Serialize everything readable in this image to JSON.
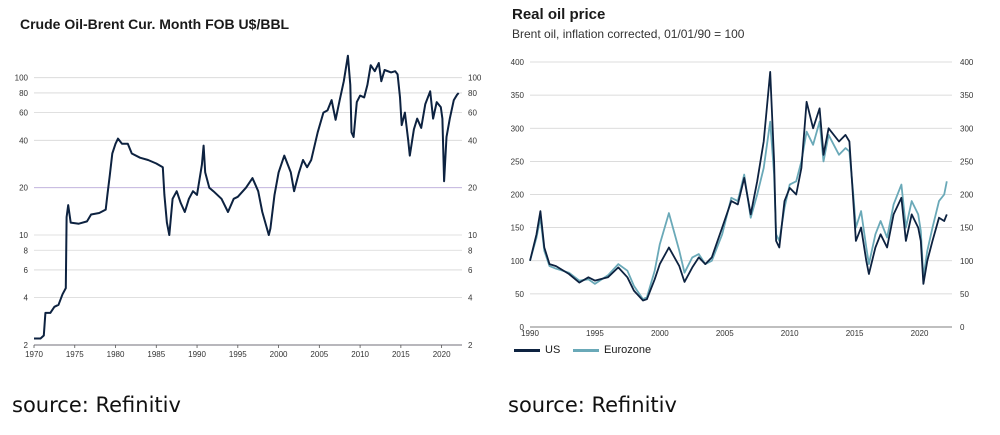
{
  "left_chart": {
    "title": "Crude Oil-Brent Cur. Month FOB U$/BBL",
    "source": "source: Refinitiv"
  },
  "right_chart": {
    "title": "Real oil price",
    "subtitle": "Brent oil, inflation corrected, 01/01/90 = 100",
    "source": "source: Refinitiv",
    "legend": [
      {
        "label": "US",
        "color": "#0d2240"
      },
      {
        "label": "Eurozone",
        "color": "#6aa9b8"
      }
    ]
  },
  "chart_data": [
    {
      "type": "line",
      "title": "Crude Oil-Brent Cur. Month FOB U$/BBL",
      "scale": "log",
      "ylim": [
        2,
        150
      ],
      "xlim": [
        1970,
        2022.5
      ],
      "x_ticks": [
        "1970",
        "1975",
        "1980",
        "1985",
        "1990",
        "1995",
        "2000",
        "2005",
        "2010",
        "2015",
        "2020"
      ],
      "y_ticks": [
        "2",
        "4",
        "6",
        "8",
        "10",
        "20",
        "40",
        "60",
        "80",
        "100"
      ],
      "grid": "horizontal",
      "line_color": "#0d2240",
      "series": [
        {
          "values": [
            [
              1970.0,
              2.2
            ],
            [
              1970.8,
              2.2
            ],
            [
              1971.2,
              2.3
            ],
            [
              1971.4,
              3.2
            ],
            [
              1972.0,
              3.2
            ],
            [
              1972.5,
              3.5
            ],
            [
              1973.0,
              3.6
            ],
            [
              1973.5,
              4.2
            ],
            [
              1973.9,
              4.6
            ],
            [
              1974.0,
              13.0
            ],
            [
              1974.2,
              15.5
            ],
            [
              1974.5,
              12.0
            ],
            [
              1975.5,
              11.8
            ],
            [
              1976.5,
              12.2
            ],
            [
              1977.0,
              13.5
            ],
            [
              1978.0,
              13.8
            ],
            [
              1978.8,
              14.5
            ],
            [
              1979.0,
              18.0
            ],
            [
              1979.3,
              24.0
            ],
            [
              1979.6,
              33.0
            ],
            [
              1980.0,
              38.0
            ],
            [
              1980.3,
              41.0
            ],
            [
              1980.8,
              38.0
            ],
            [
              1981.5,
              38.0
            ],
            [
              1982.0,
              33.0
            ],
            [
              1983.0,
              31.0
            ],
            [
              1984.0,
              30.0
            ],
            [
              1985.0,
              28.5
            ],
            [
              1985.8,
              27.0
            ],
            [
              1986.0,
              18.0
            ],
            [
              1986.3,
              12.0
            ],
            [
              1986.6,
              10.0
            ],
            [
              1987.0,
              17.0
            ],
            [
              1987.5,
              19.0
            ],
            [
              1988.0,
              16.0
            ],
            [
              1988.5,
              14.0
            ],
            [
              1989.0,
              17.0
            ],
            [
              1989.5,
              19.0
            ],
            [
              1990.0,
              18.0
            ],
            [
              1990.6,
              28.0
            ],
            [
              1990.8,
              37.0
            ],
            [
              1991.0,
              25.0
            ],
            [
              1991.5,
              20.0
            ],
            [
              1992.0,
              19.0
            ],
            [
              1993.0,
              17.0
            ],
            [
              1993.8,
              14.0
            ],
            [
              1994.5,
              17.0
            ],
            [
              1995.0,
              17.5
            ],
            [
              1996.0,
              20.0
            ],
            [
              1996.8,
              23.0
            ],
            [
              1997.5,
              19.0
            ],
            [
              1998.0,
              14.0
            ],
            [
              1998.8,
              10.0
            ],
            [
              1999.0,
              11.0
            ],
            [
              1999.5,
              18.0
            ],
            [
              2000.0,
              25.0
            ],
            [
              2000.7,
              32.0
            ],
            [
              2001.5,
              25.0
            ],
            [
              2001.9,
              19.0
            ],
            [
              2002.5,
              25.0
            ],
            [
              2003.0,
              30.0
            ],
            [
              2003.5,
              27.0
            ],
            [
              2004.0,
              30.0
            ],
            [
              2004.8,
              45.0
            ],
            [
              2005.5,
              60.0
            ],
            [
              2006.0,
              62.0
            ],
            [
              2006.5,
              72.0
            ],
            [
              2007.0,
              54.0
            ],
            [
              2007.5,
              72.0
            ],
            [
              2008.0,
              95.0
            ],
            [
              2008.5,
              138.0
            ],
            [
              2008.8,
              90.0
            ],
            [
              2008.95,
              45.0
            ],
            [
              2009.2,
              42.0
            ],
            [
              2009.6,
              70.0
            ],
            [
              2010.0,
              77.0
            ],
            [
              2010.5,
              75.0
            ],
            [
              2010.9,
              90.0
            ],
            [
              2011.3,
              120.0
            ],
            [
              2011.8,
              110.0
            ],
            [
              2012.3,
              124.0
            ],
            [
              2012.6,
              95.0
            ],
            [
              2013.0,
              112.0
            ],
            [
              2013.8,
              108.0
            ],
            [
              2014.3,
              110.0
            ],
            [
              2014.6,
              105.0
            ],
            [
              2014.9,
              75.0
            ],
            [
              2015.1,
              50.0
            ],
            [
              2015.5,
              60.0
            ],
            [
              2015.9,
              40.0
            ],
            [
              2016.1,
              32.0
            ],
            [
              2016.6,
              47.0
            ],
            [
              2017.0,
              55.0
            ],
            [
              2017.5,
              48.0
            ],
            [
              2018.0,
              68.0
            ],
            [
              2018.6,
              82.0
            ],
            [
              2018.95,
              55.0
            ],
            [
              2019.4,
              70.0
            ],
            [
              2019.9,
              65.0
            ],
            [
              2020.1,
              55.0
            ],
            [
              2020.3,
              22.0
            ],
            [
              2020.6,
              42.0
            ],
            [
              2021.0,
              55.0
            ],
            [
              2021.5,
              72.0
            ],
            [
              2021.9,
              78.0
            ],
            [
              2022.1,
              80.0
            ]
          ]
        }
      ]
    },
    {
      "type": "line",
      "title": "Real oil price",
      "subtitle": "Brent oil, inflation corrected, 01/01/90 = 100",
      "ylim": [
        0,
        400
      ],
      "xlim": [
        1990,
        2022.5
      ],
      "x_ticks": [
        "1990",
        "1995",
        "2000",
        "2005",
        "2010",
        "2015",
        "2020"
      ],
      "y_ticks": [
        "0",
        "50",
        "100",
        "150",
        "200",
        "250",
        "300",
        "350",
        "400"
      ],
      "grid": "horizontal",
      "legend_position": "bottom-left",
      "series": [
        {
          "name": "US",
          "color": "#0d2240",
          "values": [
            [
              1990.0,
              100
            ],
            [
              1990.5,
              140
            ],
            [
              1990.8,
              175
            ],
            [
              1991.1,
              120
            ],
            [
              1991.5,
              95
            ],
            [
              1992.0,
              92
            ],
            [
              1993.0,
              80
            ],
            [
              1993.8,
              67
            ],
            [
              1994.5,
              75
            ],
            [
              1995.0,
              70
            ],
            [
              1996.0,
              75
            ],
            [
              1996.8,
              90
            ],
            [
              1997.5,
              75
            ],
            [
              1998.0,
              55
            ],
            [
              1998.7,
              40
            ],
            [
              1999.0,
              42
            ],
            [
              1999.6,
              72
            ],
            [
              2000.0,
              95
            ],
            [
              2000.7,
              120
            ],
            [
              2001.5,
              92
            ],
            [
              2001.9,
              68
            ],
            [
              2002.5,
              90
            ],
            [
              2003.0,
              105
            ],
            [
              2003.5,
              95
            ],
            [
              2004.0,
              105
            ],
            [
              2004.8,
              150
            ],
            [
              2005.5,
              190
            ],
            [
              2006.0,
              185
            ],
            [
              2006.5,
              225
            ],
            [
              2007.0,
              170
            ],
            [
              2007.5,
              220
            ],
            [
              2008.0,
              280
            ],
            [
              2008.5,
              385
            ],
            [
              2008.8,
              250
            ],
            [
              2008.95,
              130
            ],
            [
              2009.2,
              120
            ],
            [
              2009.6,
              190
            ],
            [
              2010.0,
              210
            ],
            [
              2010.5,
              200
            ],
            [
              2010.9,
              240
            ],
            [
              2011.3,
              340
            ],
            [
              2011.8,
              300
            ],
            [
              2012.3,
              330
            ],
            [
              2012.6,
              260
            ],
            [
              2013.0,
              300
            ],
            [
              2013.8,
              280
            ],
            [
              2014.3,
              290
            ],
            [
              2014.6,
              280
            ],
            [
              2014.9,
              190
            ],
            [
              2015.1,
              130
            ],
            [
              2015.5,
              150
            ],
            [
              2015.9,
              100
            ],
            [
              2016.1,
              80
            ],
            [
              2016.6,
              120
            ],
            [
              2017.0,
              140
            ],
            [
              2017.5,
              120
            ],
            [
              2018.0,
              170
            ],
            [
              2018.6,
              195
            ],
            [
              2018.95,
              130
            ],
            [
              2019.4,
              170
            ],
            [
              2019.9,
              150
            ],
            [
              2020.1,
              130
            ],
            [
              2020.3,
              65
            ],
            [
              2020.6,
              100
            ],
            [
              2021.0,
              130
            ],
            [
              2021.5,
              165
            ],
            [
              2021.9,
              160
            ],
            [
              2022.1,
              170
            ]
          ]
        },
        {
          "name": "Eurozone",
          "color": "#6aa9b8",
          "values": [
            [
              1990.0,
              100
            ],
            [
              1990.5,
              135
            ],
            [
              1990.8,
              165
            ],
            [
              1991.1,
              115
            ],
            [
              1991.5,
              92
            ],
            [
              1992.0,
              88
            ],
            [
              1993.0,
              82
            ],
            [
              1993.8,
              70
            ],
            [
              1994.5,
              72
            ],
            [
              1995.0,
              65
            ],
            [
              1996.0,
              78
            ],
            [
              1996.8,
              95
            ],
            [
              1997.5,
              85
            ],
            [
              1998.0,
              62
            ],
            [
              1998.7,
              42
            ],
            [
              1999.0,
              45
            ],
            [
              1999.6,
              85
            ],
            [
              2000.0,
              125
            ],
            [
              2000.7,
              172
            ],
            [
              2001.5,
              115
            ],
            [
              2001.9,
              82
            ],
            [
              2002.5,
              105
            ],
            [
              2003.0,
              110
            ],
            [
              2003.5,
              95
            ],
            [
              2004.0,
              100
            ],
            [
              2004.8,
              140
            ],
            [
              2005.5,
              195
            ],
            [
              2006.0,
              190
            ],
            [
              2006.5,
              230
            ],
            [
              2007.0,
              165
            ],
            [
              2007.5,
              200
            ],
            [
              2008.0,
              240
            ],
            [
              2008.5,
              310
            ],
            [
              2008.8,
              230
            ],
            [
              2008.95,
              140
            ],
            [
              2009.2,
              130
            ],
            [
              2009.6,
              180
            ],
            [
              2010.0,
              215
            ],
            [
              2010.5,
              220
            ],
            [
              2010.9,
              250
            ],
            [
              2011.3,
              295
            ],
            [
              2011.8,
              275
            ],
            [
              2012.3,
              310
            ],
            [
              2012.6,
              250
            ],
            [
              2013.0,
              290
            ],
            [
              2013.8,
              260
            ],
            [
              2014.3,
              270
            ],
            [
              2014.6,
              265
            ],
            [
              2014.9,
              200
            ],
            [
              2015.1,
              150
            ],
            [
              2015.5,
              175
            ],
            [
              2015.9,
              120
            ],
            [
              2016.1,
              95
            ],
            [
              2016.6,
              140
            ],
            [
              2017.0,
              160
            ],
            [
              2017.5,
              135
            ],
            [
              2018.0,
              185
            ],
            [
              2018.6,
              215
            ],
            [
              2018.95,
              150
            ],
            [
              2019.4,
              190
            ],
            [
              2019.9,
              170
            ],
            [
              2020.1,
              145
            ],
            [
              2020.3,
              75
            ],
            [
              2020.6,
              115
            ],
            [
              2021.0,
              150
            ],
            [
              2021.5,
              190
            ],
            [
              2021.9,
              200
            ],
            [
              2022.1,
              220
            ]
          ]
        }
      ]
    }
  ]
}
